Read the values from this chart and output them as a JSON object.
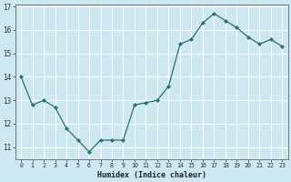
{
  "x": [
    0,
    1,
    2,
    3,
    4,
    5,
    6,
    7,
    8,
    9,
    10,
    11,
    12,
    13,
    14,
    15,
    16,
    17,
    18,
    19,
    20,
    21,
    22,
    23
  ],
  "y": [
    14.0,
    12.8,
    13.0,
    12.7,
    11.8,
    11.3,
    10.8,
    11.3,
    11.3,
    11.3,
    12.8,
    12.9,
    13.0,
    13.6,
    15.4,
    15.6,
    16.3,
    16.7,
    16.4,
    16.1,
    15.7,
    15.4,
    15.6,
    15.3
  ],
  "bg_color": "#cde8f0",
  "grid_color": "#ffffff",
  "line_color": "#2d7070",
  "marker_color": "#2d7070",
  "xlabel": "Humidex (Indice chaleur)",
  "ylim_min": 10.5,
  "ylim_max": 17.1,
  "xlim_min": -0.5,
  "xlim_max": 23.5,
  "yticks": [
    11,
    12,
    13,
    14,
    15,
    16,
    17
  ],
  "xticks": [
    0,
    1,
    2,
    3,
    4,
    5,
    6,
    7,
    8,
    9,
    10,
    11,
    12,
    13,
    14,
    15,
    16,
    17,
    18,
    19,
    20,
    21,
    22,
    23
  ]
}
